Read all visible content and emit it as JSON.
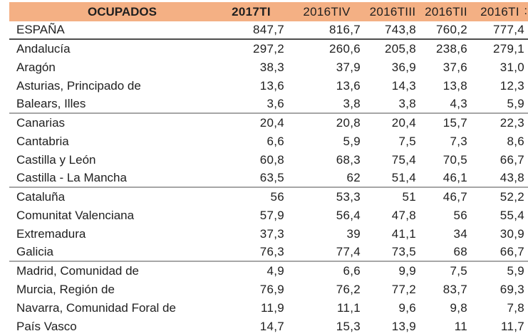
{
  "table": {
    "title": "OCUPADOS",
    "columns": [
      "2017TI",
      "2016TIV",
      "2016TIII",
      "2016TII",
      "2016TI"
    ],
    "next_column_partial": ":",
    "rows": [
      {
        "label": "ESPAÑA",
        "values": [
          "847,7",
          "816,7",
          "743,8",
          "760,2",
          "777,4"
        ],
        "separator_after": "dark"
      },
      {
        "label": "Andalucía",
        "values": [
          "297,2",
          "260,6",
          "205,8",
          "238,6",
          "279,1"
        ]
      },
      {
        "label": "Aragón",
        "values": [
          "38,3",
          "37,9",
          "36,9",
          "37,6",
          "31,0"
        ]
      },
      {
        "label": "Asturias, Principado de",
        "values": [
          "13,6",
          "13,6",
          "14,3",
          "13,8",
          "12,3"
        ]
      },
      {
        "label": "Balears, Illes",
        "values": [
          "3,6",
          "3,8",
          "3,8",
          "4,3",
          "5,9"
        ],
        "separator_after": "light"
      },
      {
        "label": "Canarias",
        "values": [
          "20,4",
          "20,8",
          "20,4",
          "15,7",
          "22,3"
        ]
      },
      {
        "label": "Cantabria",
        "values": [
          "6,6",
          "5,9",
          "7,5",
          "7,3",
          "8,6"
        ]
      },
      {
        "label": "Castilla y León",
        "values": [
          "60,8",
          "68,3",
          "75,4",
          "70,5",
          "66,7"
        ]
      },
      {
        "label": "Castilla - La Mancha",
        "values": [
          "63,5",
          "62",
          "51,4",
          "46,1",
          "43,8"
        ],
        "separator_after": "light"
      },
      {
        "label": "Cataluña",
        "values": [
          "56",
          "53,3",
          "51",
          "46,7",
          "52,2"
        ]
      },
      {
        "label": "Comunitat Valenciana",
        "values": [
          "57,9",
          "56,4",
          "47,8",
          "56",
          "55,4"
        ]
      },
      {
        "label": "Extremadura",
        "values": [
          "37,3",
          "39",
          "41,1",
          "34",
          "30,9"
        ]
      },
      {
        "label": "Galicia",
        "values": [
          "76,3",
          "77,4",
          "73,5",
          "68",
          "66,7"
        ],
        "separator_after": "light"
      },
      {
        "label": "Madrid, Comunidad de",
        "values": [
          "4,9",
          "6,6",
          "9,9",
          "7,5",
          "5,9"
        ]
      },
      {
        "label": "Murcia, Región de",
        "values": [
          "76,9",
          "76,2",
          "77,2",
          "83,7",
          "69,3"
        ]
      },
      {
        "label": "Navarra, Comunidad Foral de",
        "values": [
          "11,9",
          "11,1",
          "9,6",
          "9,8",
          "7,8"
        ]
      },
      {
        "label": "País Vasco",
        "values": [
          "14,7",
          "15,3",
          "13,9",
          "11",
          "11,7"
        ],
        "clipped": true
      }
    ]
  },
  "colors": {
    "header_bg": "#F4B084",
    "text": "#1F1F1F",
    "separator_light": "#A6A6A6",
    "separator_dark": "#4D4D4D",
    "background": "#FFFFFF"
  }
}
